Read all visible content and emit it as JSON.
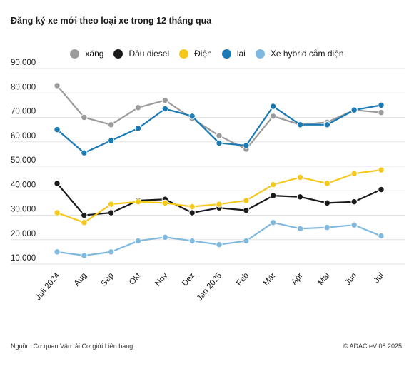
{
  "chart_data": {
    "type": "line",
    "title": "Đăng ký xe mới theo loại xe trong 12 tháng qua",
    "xlabel": "",
    "ylabel": "",
    "categories": [
      "Juli 2024",
      "Aug",
      "Sep",
      "Okt",
      "Nov",
      "Dez",
      "Jan 2025",
      "Feb",
      "Mär",
      "Apr",
      "Mai",
      "Jun",
      "Jul"
    ],
    "y_ticks": [
      "10.000",
      "20.000",
      "30.000",
      "40.000",
      "50.000",
      "60.000",
      "70.000",
      "80.000",
      "90.000"
    ],
    "ylim": [
      10000,
      90000
    ],
    "grid": true,
    "legend_position": "top-center",
    "series": [
      {
        "name": "xăng",
        "color": "#9b9b9b",
        "values": [
          83000,
          70000,
          67000,
          74000,
          77000,
          69500,
          62500,
          57000,
          70500,
          67000,
          68000,
          73000,
          72000
        ]
      },
      {
        "name": "Dầu diesel",
        "color": "#1a1a1a",
        "values": [
          43000,
          30000,
          31000,
          36000,
          36500,
          31000,
          33000,
          32000,
          38000,
          37500,
          35000,
          35500,
          40500
        ]
      },
      {
        "name": "Điện",
        "color": "#f5c81a",
        "values": [
          31000,
          27000,
          34500,
          35500,
          35000,
          33500,
          34500,
          36000,
          42500,
          45500,
          43000,
          47000,
          48500
        ]
      },
      {
        "name": "lai",
        "color": "#1a7ab5",
        "values": [
          65000,
          55500,
          60500,
          65500,
          73500,
          70500,
          59500,
          58500,
          74500,
          67000,
          67000,
          73000,
          75000
        ]
      },
      {
        "name": "Xe hybrid cắm điện",
        "color": "#80b9e0",
        "values": [
          15000,
          13500,
          15000,
          19500,
          21000,
          19500,
          18000,
          19500,
          27000,
          24500,
          25000,
          26000,
          21500
        ]
      }
    ]
  },
  "footer": {
    "source": "Nguồn: Cơ quan Vận tải Cơ giới Liên bang",
    "copyright": "© ADAC eV 08.2025"
  }
}
